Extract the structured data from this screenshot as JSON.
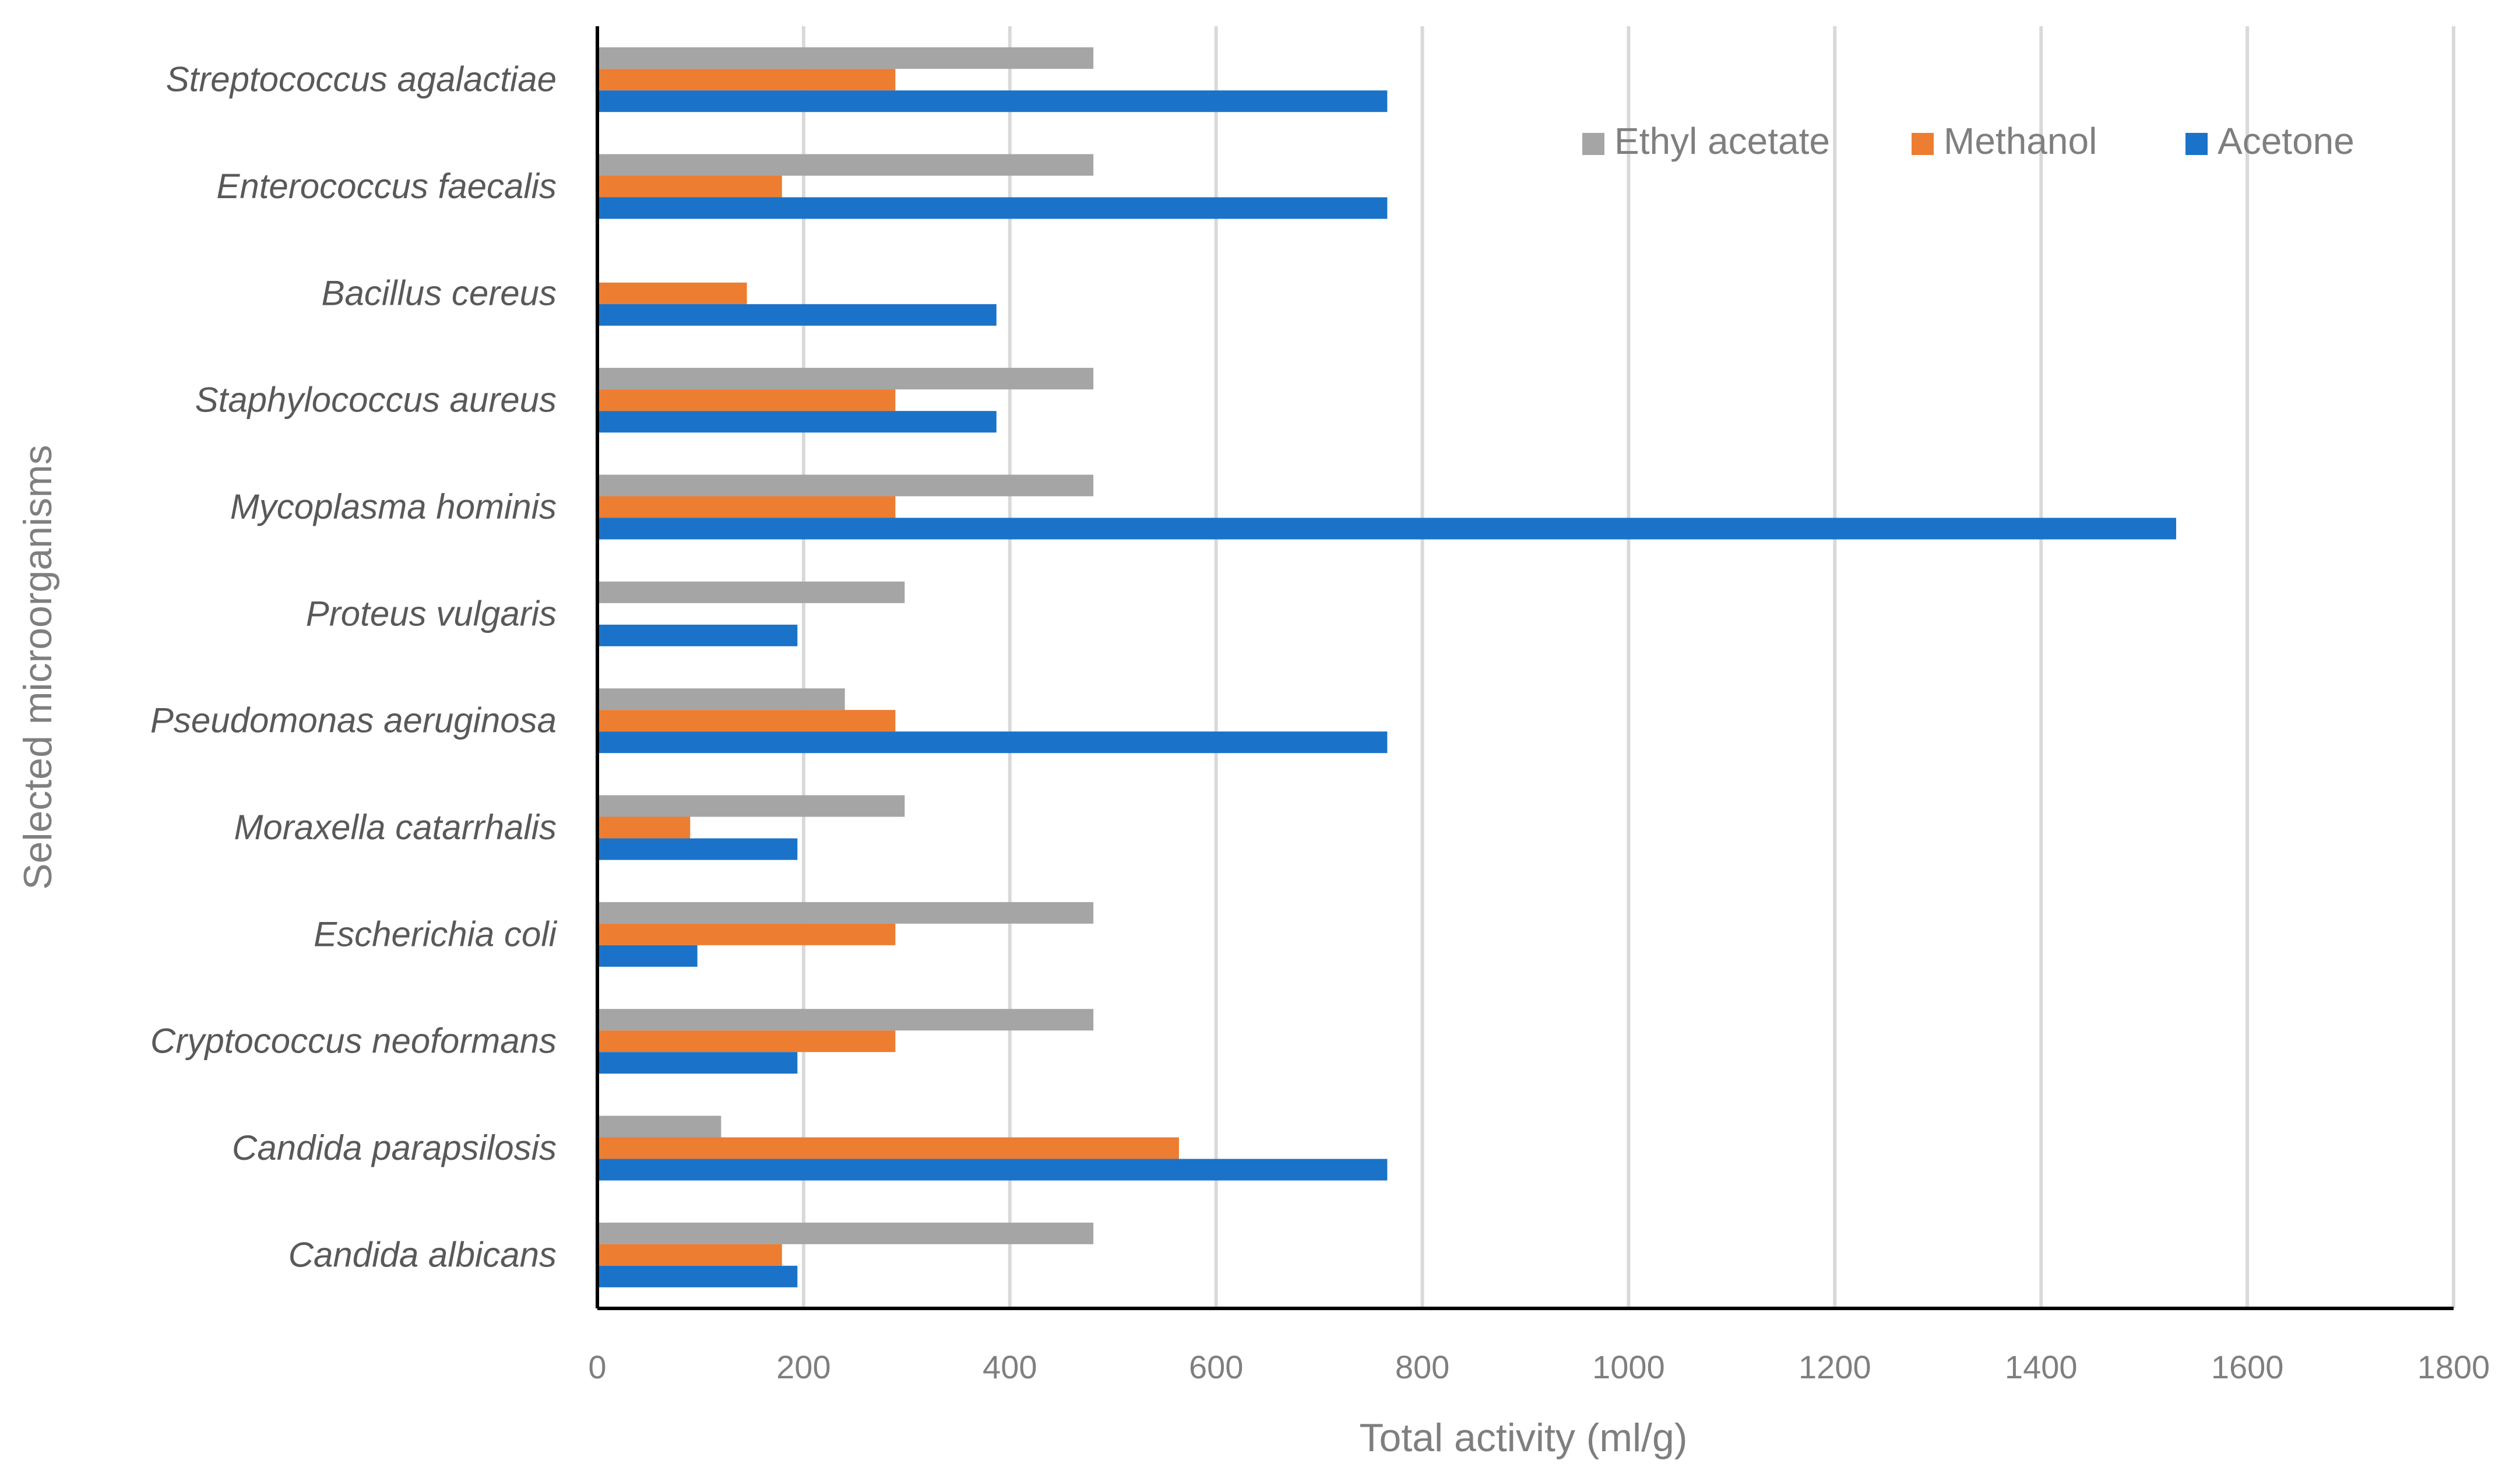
{
  "chart_data": {
    "type": "bar",
    "orientation": "horizontal",
    "title": "",
    "xlabel": "Total activity (ml/g)",
    "ylabel": "Selected microorganisms",
    "xlim": [
      0,
      1800
    ],
    "xticks": [
      "0",
      "200",
      "400",
      "600",
      "800",
      "1000",
      "1200",
      "1400",
      "1600",
      "1800"
    ],
    "grid": "vertical",
    "legend_position": "top-right",
    "categories": [
      "Streptococcus agalactiae",
      "Enterococcus faecalis",
      "Bacillus cereus",
      "Staphylococcus aureus",
      "Mycoplasma hominis",
      "Proteus vulgaris",
      "Pseudomonas aeruginosa",
      "Moraxella catarrhalis",
      "Escherichia coli",
      "Cryptococcus neoformans",
      "Candida parapsilosis",
      "Candida albicans"
    ],
    "series": [
      {
        "name": "Ethyl acetate",
        "color": "#a5a5a5",
        "values": [
          481,
          481,
          0,
          481,
          481,
          298,
          240,
          298,
          481,
          481,
          120,
          481
        ]
      },
      {
        "name": "Methanol",
        "color": "#ed7d31",
        "values": [
          289,
          179,
          145,
          289,
          289,
          0,
          289,
          90,
          289,
          289,
          564,
          179
        ]
      },
      {
        "name": "Acetone",
        "color": "#1a73c8",
        "values": [
          766,
          766,
          387,
          387,
          1531,
          194,
          766,
          194,
          97,
          194,
          766,
          194
        ]
      }
    ],
    "legend_order": [
      "Ethyl acetate",
      "Methanol",
      "Acetone"
    ]
  }
}
